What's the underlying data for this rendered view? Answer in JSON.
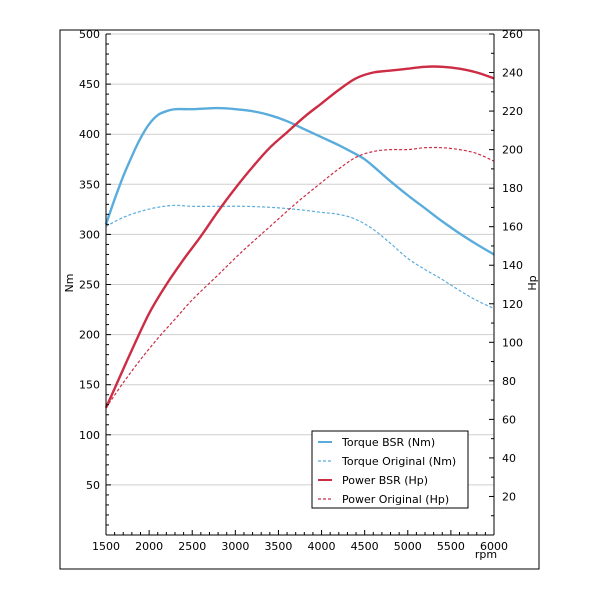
{
  "chart_data": {
    "type": "line",
    "xlabel": "rpm",
    "ylabel_left": "Nm",
    "ylabel_right": "Hp",
    "xlim": [
      1500,
      6000
    ],
    "ylim_left": [
      0,
      500
    ],
    "ylim_right": [
      0,
      260
    ],
    "x_ticks": [
      1500,
      2000,
      2500,
      3000,
      3500,
      4000,
      4500,
      5000,
      5500,
      6000
    ],
    "y_left_ticks": [
      50,
      100,
      150,
      200,
      250,
      300,
      350,
      400,
      450,
      500
    ],
    "y_right_ticks": [
      20,
      40,
      60,
      80,
      100,
      120,
      140,
      160,
      180,
      200,
      220,
      240,
      260
    ],
    "grid": "horizontal",
    "legend_placement": "bottom-right",
    "series": [
      {
        "name": "Torque BSR (Nm)",
        "axis": "left",
        "color": "#5aacdc",
        "style": "solid",
        "points": [
          [
            1500,
            310
          ],
          [
            1600,
            335
          ],
          [
            1700,
            358
          ],
          [
            1800,
            378
          ],
          [
            1900,
            396
          ],
          [
            2000,
            410
          ],
          [
            2100,
            419
          ],
          [
            2200,
            423
          ],
          [
            2300,
            425
          ],
          [
            2500,
            425
          ],
          [
            2800,
            426
          ],
          [
            3000,
            425
          ],
          [
            3200,
            423
          ],
          [
            3400,
            419
          ],
          [
            3600,
            413
          ],
          [
            3800,
            405
          ],
          [
            4000,
            397
          ],
          [
            4200,
            389
          ],
          [
            4400,
            380
          ],
          [
            4500,
            375
          ],
          [
            4600,
            368
          ],
          [
            4800,
            353
          ],
          [
            5000,
            339
          ],
          [
            5200,
            326
          ],
          [
            5400,
            313
          ],
          [
            5600,
            301
          ],
          [
            5800,
            290
          ],
          [
            6000,
            280
          ]
        ]
      },
      {
        "name": "Torque Original (Nm)",
        "axis": "left",
        "color": "#5aacdc",
        "style": "dashed",
        "points": [
          [
            1500,
            308
          ],
          [
            1700,
            317
          ],
          [
            1900,
            323
          ],
          [
            2100,
            327
          ],
          [
            2300,
            329
          ],
          [
            2500,
            328
          ],
          [
            2800,
            328
          ],
          [
            3100,
            328
          ],
          [
            3400,
            327
          ],
          [
            3700,
            325
          ],
          [
            4000,
            322
          ],
          [
            4200,
            320
          ],
          [
            4400,
            315
          ],
          [
            4600,
            305
          ],
          [
            4800,
            291
          ],
          [
            5000,
            276
          ],
          [
            5200,
            265
          ],
          [
            5400,
            255
          ],
          [
            5600,
            244
          ],
          [
            5800,
            234
          ],
          [
            6000,
            226
          ]
        ]
      },
      {
        "name": "Power BSR (Hp)",
        "axis": "right",
        "color": "#cc2c44",
        "style": "solid",
        "points": [
          [
            1500,
            66
          ],
          [
            1600,
            76
          ],
          [
            1800,
            96
          ],
          [
            2000,
            115
          ],
          [
            2200,
            130
          ],
          [
            2400,
            143
          ],
          [
            2600,
            155
          ],
          [
            2800,
            168
          ],
          [
            3000,
            180
          ],
          [
            3200,
            191
          ],
          [
            3400,
            201
          ],
          [
            3600,
            209
          ],
          [
            3800,
            217
          ],
          [
            4000,
            224
          ],
          [
            4200,
            231
          ],
          [
            4400,
            237
          ],
          [
            4600,
            240
          ],
          [
            4800,
            241
          ],
          [
            5000,
            242
          ],
          [
            5200,
            243
          ],
          [
            5400,
            243
          ],
          [
            5600,
            242
          ],
          [
            5800,
            240
          ],
          [
            6000,
            237
          ]
        ]
      },
      {
        "name": "Power Original (Hp)",
        "axis": "right",
        "color": "#cc2c44",
        "style": "dashed",
        "points": [
          [
            1500,
            66
          ],
          [
            1700,
            79
          ],
          [
            1900,
            91
          ],
          [
            2100,
            102
          ],
          [
            2300,
            112
          ],
          [
            2500,
            122
          ],
          [
            2800,
            135
          ],
          [
            3100,
            148
          ],
          [
            3400,
            160
          ],
          [
            3700,
            172
          ],
          [
            4000,
            183
          ],
          [
            4200,
            190
          ],
          [
            4400,
            196
          ],
          [
            4600,
            199
          ],
          [
            4800,
            200
          ],
          [
            5000,
            200
          ],
          [
            5200,
            201
          ],
          [
            5400,
            201
          ],
          [
            5600,
            200
          ],
          [
            5800,
            198
          ],
          [
            6000,
            194
          ]
        ]
      }
    ]
  }
}
